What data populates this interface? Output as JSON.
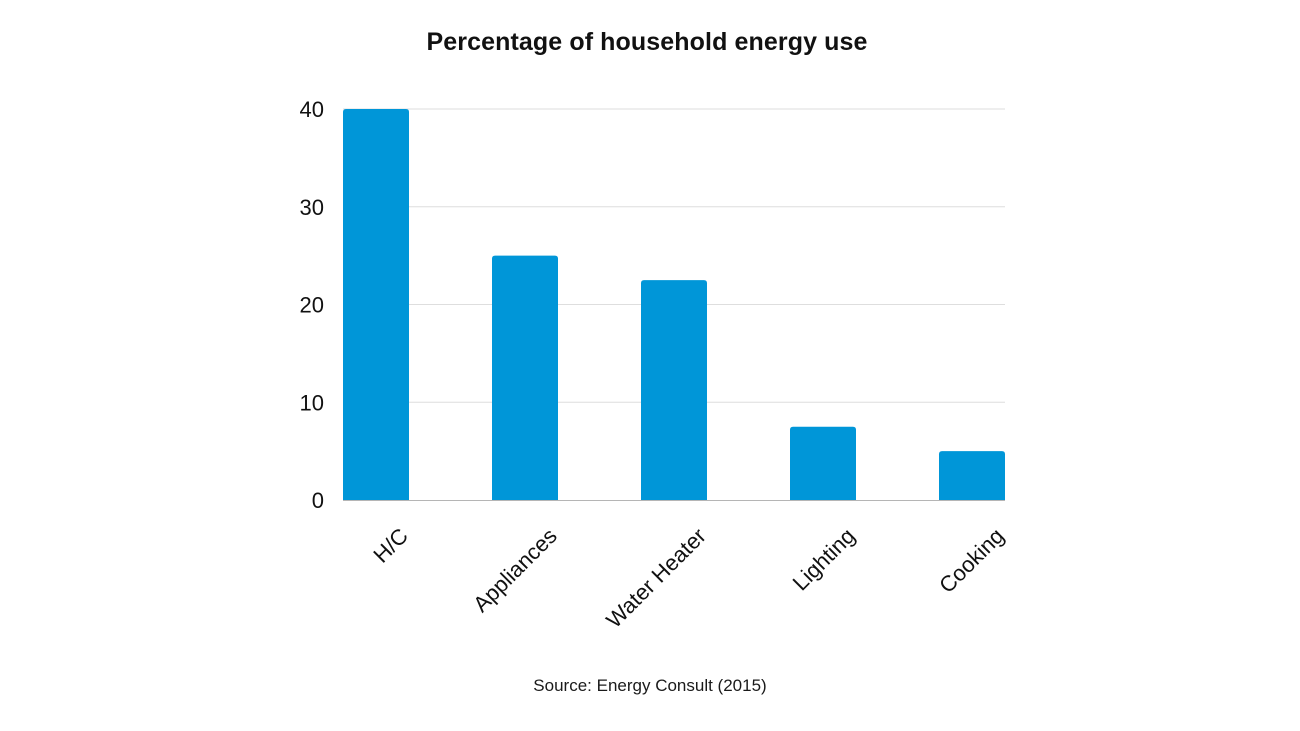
{
  "chart_data": {
    "type": "bar",
    "title": "Percentage of household energy use",
    "source": "Source: Energy Consult (2015)",
    "categories": [
      "H/C",
      "Appliances",
      "Water Heater",
      "Lighting",
      "Cooking"
    ],
    "values": [
      40,
      25,
      22.5,
      7.5,
      5
    ],
    "xlabel": "",
    "ylabel": "",
    "ylim": [
      0,
      40
    ],
    "yticks": [
      0,
      10,
      20,
      30,
      40
    ],
    "grid": true,
    "bar_color": "#0096d8",
    "grid_color": "#dedede",
    "axis_color": "#b5b5b5"
  }
}
